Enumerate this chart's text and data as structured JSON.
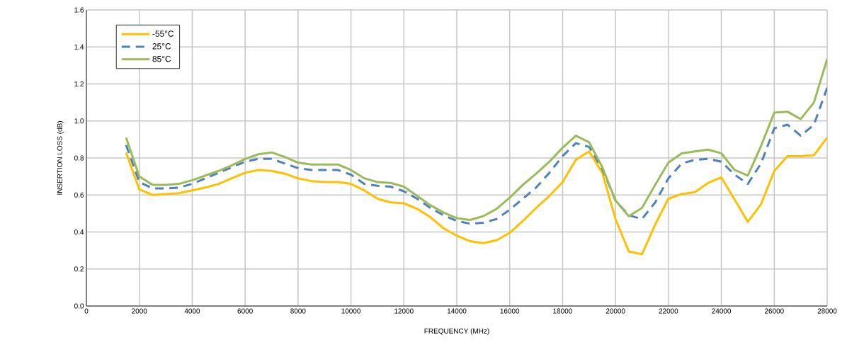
{
  "chart_data": {
    "type": "line",
    "xlabel": "FREQUENCY (MHz)",
    "ylabel": "INSERTION LOSS (dB)",
    "x": [
      1500,
      2000,
      2500,
      3000,
      3500,
      4000,
      4500,
      5000,
      5500,
      6000,
      6500,
      7000,
      7500,
      8000,
      8500,
      9000,
      9500,
      10000,
      10500,
      11000,
      11500,
      12000,
      12500,
      13000,
      13500,
      14000,
      14500,
      15000,
      15500,
      16000,
      16500,
      17000,
      17500,
      18000,
      18500,
      19000,
      19500,
      20000,
      20500,
      21000,
      21500,
      22000,
      22500,
      23000,
      23500,
      24000,
      24500,
      25000,
      25500,
      26000,
      26500,
      27000,
      27500,
      28000
    ],
    "series": [
      {
        "name": "-55°C",
        "color": "#ffc000",
        "line_style": "solid",
        "values": [
          0.83,
          0.63,
          0.6,
          0.605,
          0.61,
          0.625,
          0.64,
          0.66,
          0.69,
          0.72,
          0.735,
          0.73,
          0.715,
          0.69,
          0.675,
          0.67,
          0.67,
          0.66,
          0.625,
          0.58,
          0.56,
          0.555,
          0.525,
          0.48,
          0.42,
          0.38,
          0.35,
          0.34,
          0.355,
          0.395,
          0.46,
          0.53,
          0.595,
          0.67,
          0.79,
          0.835,
          0.72,
          0.47,
          0.295,
          0.28,
          0.44,
          0.58,
          0.605,
          0.615,
          0.665,
          0.695,
          0.575,
          0.455,
          0.55,
          0.73,
          0.81,
          0.81,
          0.815,
          0.91
        ]
      },
      {
        "name": "25°C",
        "color": "#4f81bd",
        "line_style": "dashed",
        "values": [
          0.87,
          0.67,
          0.635,
          0.635,
          0.64,
          0.66,
          0.69,
          0.72,
          0.75,
          0.78,
          0.795,
          0.795,
          0.77,
          0.745,
          0.735,
          0.735,
          0.735,
          0.71,
          0.66,
          0.65,
          0.645,
          0.62,
          0.58,
          0.53,
          0.49,
          0.46,
          0.445,
          0.45,
          0.47,
          0.52,
          0.58,
          0.64,
          0.72,
          0.81,
          0.88,
          0.86,
          0.74,
          0.57,
          0.49,
          0.47,
          0.56,
          0.69,
          0.77,
          0.79,
          0.795,
          0.78,
          0.71,
          0.66,
          0.77,
          0.96,
          0.98,
          0.92,
          0.98,
          1.18
        ]
      },
      {
        "name": "85°C",
        "color": "#9bbb59",
        "line_style": "solid",
        "values": [
          0.91,
          0.7,
          0.655,
          0.655,
          0.66,
          0.68,
          0.705,
          0.73,
          0.76,
          0.795,
          0.82,
          0.83,
          0.805,
          0.775,
          0.765,
          0.765,
          0.765,
          0.735,
          0.69,
          0.67,
          0.665,
          0.645,
          0.595,
          0.545,
          0.505,
          0.475,
          0.465,
          0.485,
          0.525,
          0.585,
          0.655,
          0.715,
          0.78,
          0.855,
          0.92,
          0.885,
          0.75,
          0.57,
          0.485,
          0.53,
          0.655,
          0.775,
          0.825,
          0.835,
          0.845,
          0.825,
          0.735,
          0.705,
          0.865,
          1.045,
          1.05,
          1.01,
          1.1,
          1.335
        ]
      }
    ],
    "xlim": [
      0,
      28000
    ],
    "xticks": [
      0,
      2000,
      4000,
      6000,
      8000,
      10000,
      12000,
      14000,
      16000,
      18000,
      20000,
      22000,
      24000,
      26000,
      28000
    ],
    "ylim": [
      0,
      1.6
    ],
    "yticks": [
      {
        "value": 0,
        "label": "0.0"
      },
      {
        "value": 0.2,
        "label": "0.2"
      },
      {
        "value": 0.4,
        "label": "0.4"
      },
      {
        "value": 0.6,
        "label": "0.6"
      },
      {
        "value": 0.8,
        "label": "0.8"
      },
      {
        "value": 1.0,
        "label": "1.0"
      },
      {
        "value": 1.2,
        "label": "1.2"
      },
      {
        "value": 1.4,
        "label": "1.4"
      },
      {
        "value": 1.6,
        "label": "1.6"
      }
    ],
    "grid": true,
    "legend": "top left",
    "marker": "none"
  }
}
